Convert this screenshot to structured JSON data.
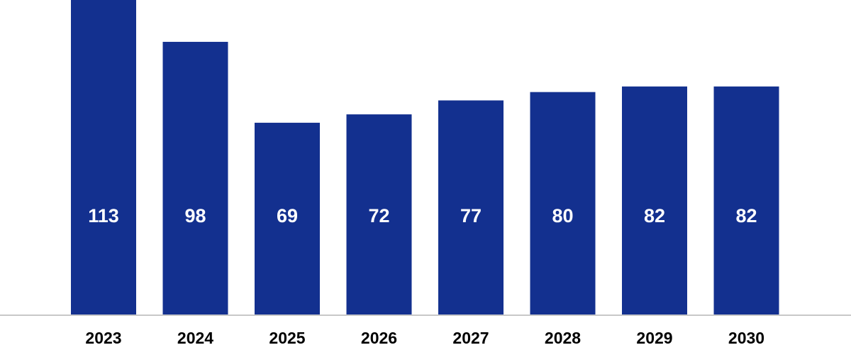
{
  "chart_data": {
    "type": "bar",
    "categories": [
      "2023",
      "2024",
      "2025",
      "2026",
      "2027",
      "2028",
      "2029",
      "2030"
    ],
    "values": [
      113,
      98,
      69,
      72,
      77,
      80,
      82,
      82
    ],
    "title": "",
    "xlabel": "",
    "ylabel": "",
    "ylim": [
      0,
      113
    ],
    "grid": false,
    "legend": "none",
    "bar_color": "#13308f",
    "axis_color": "#c8c8c8"
  }
}
